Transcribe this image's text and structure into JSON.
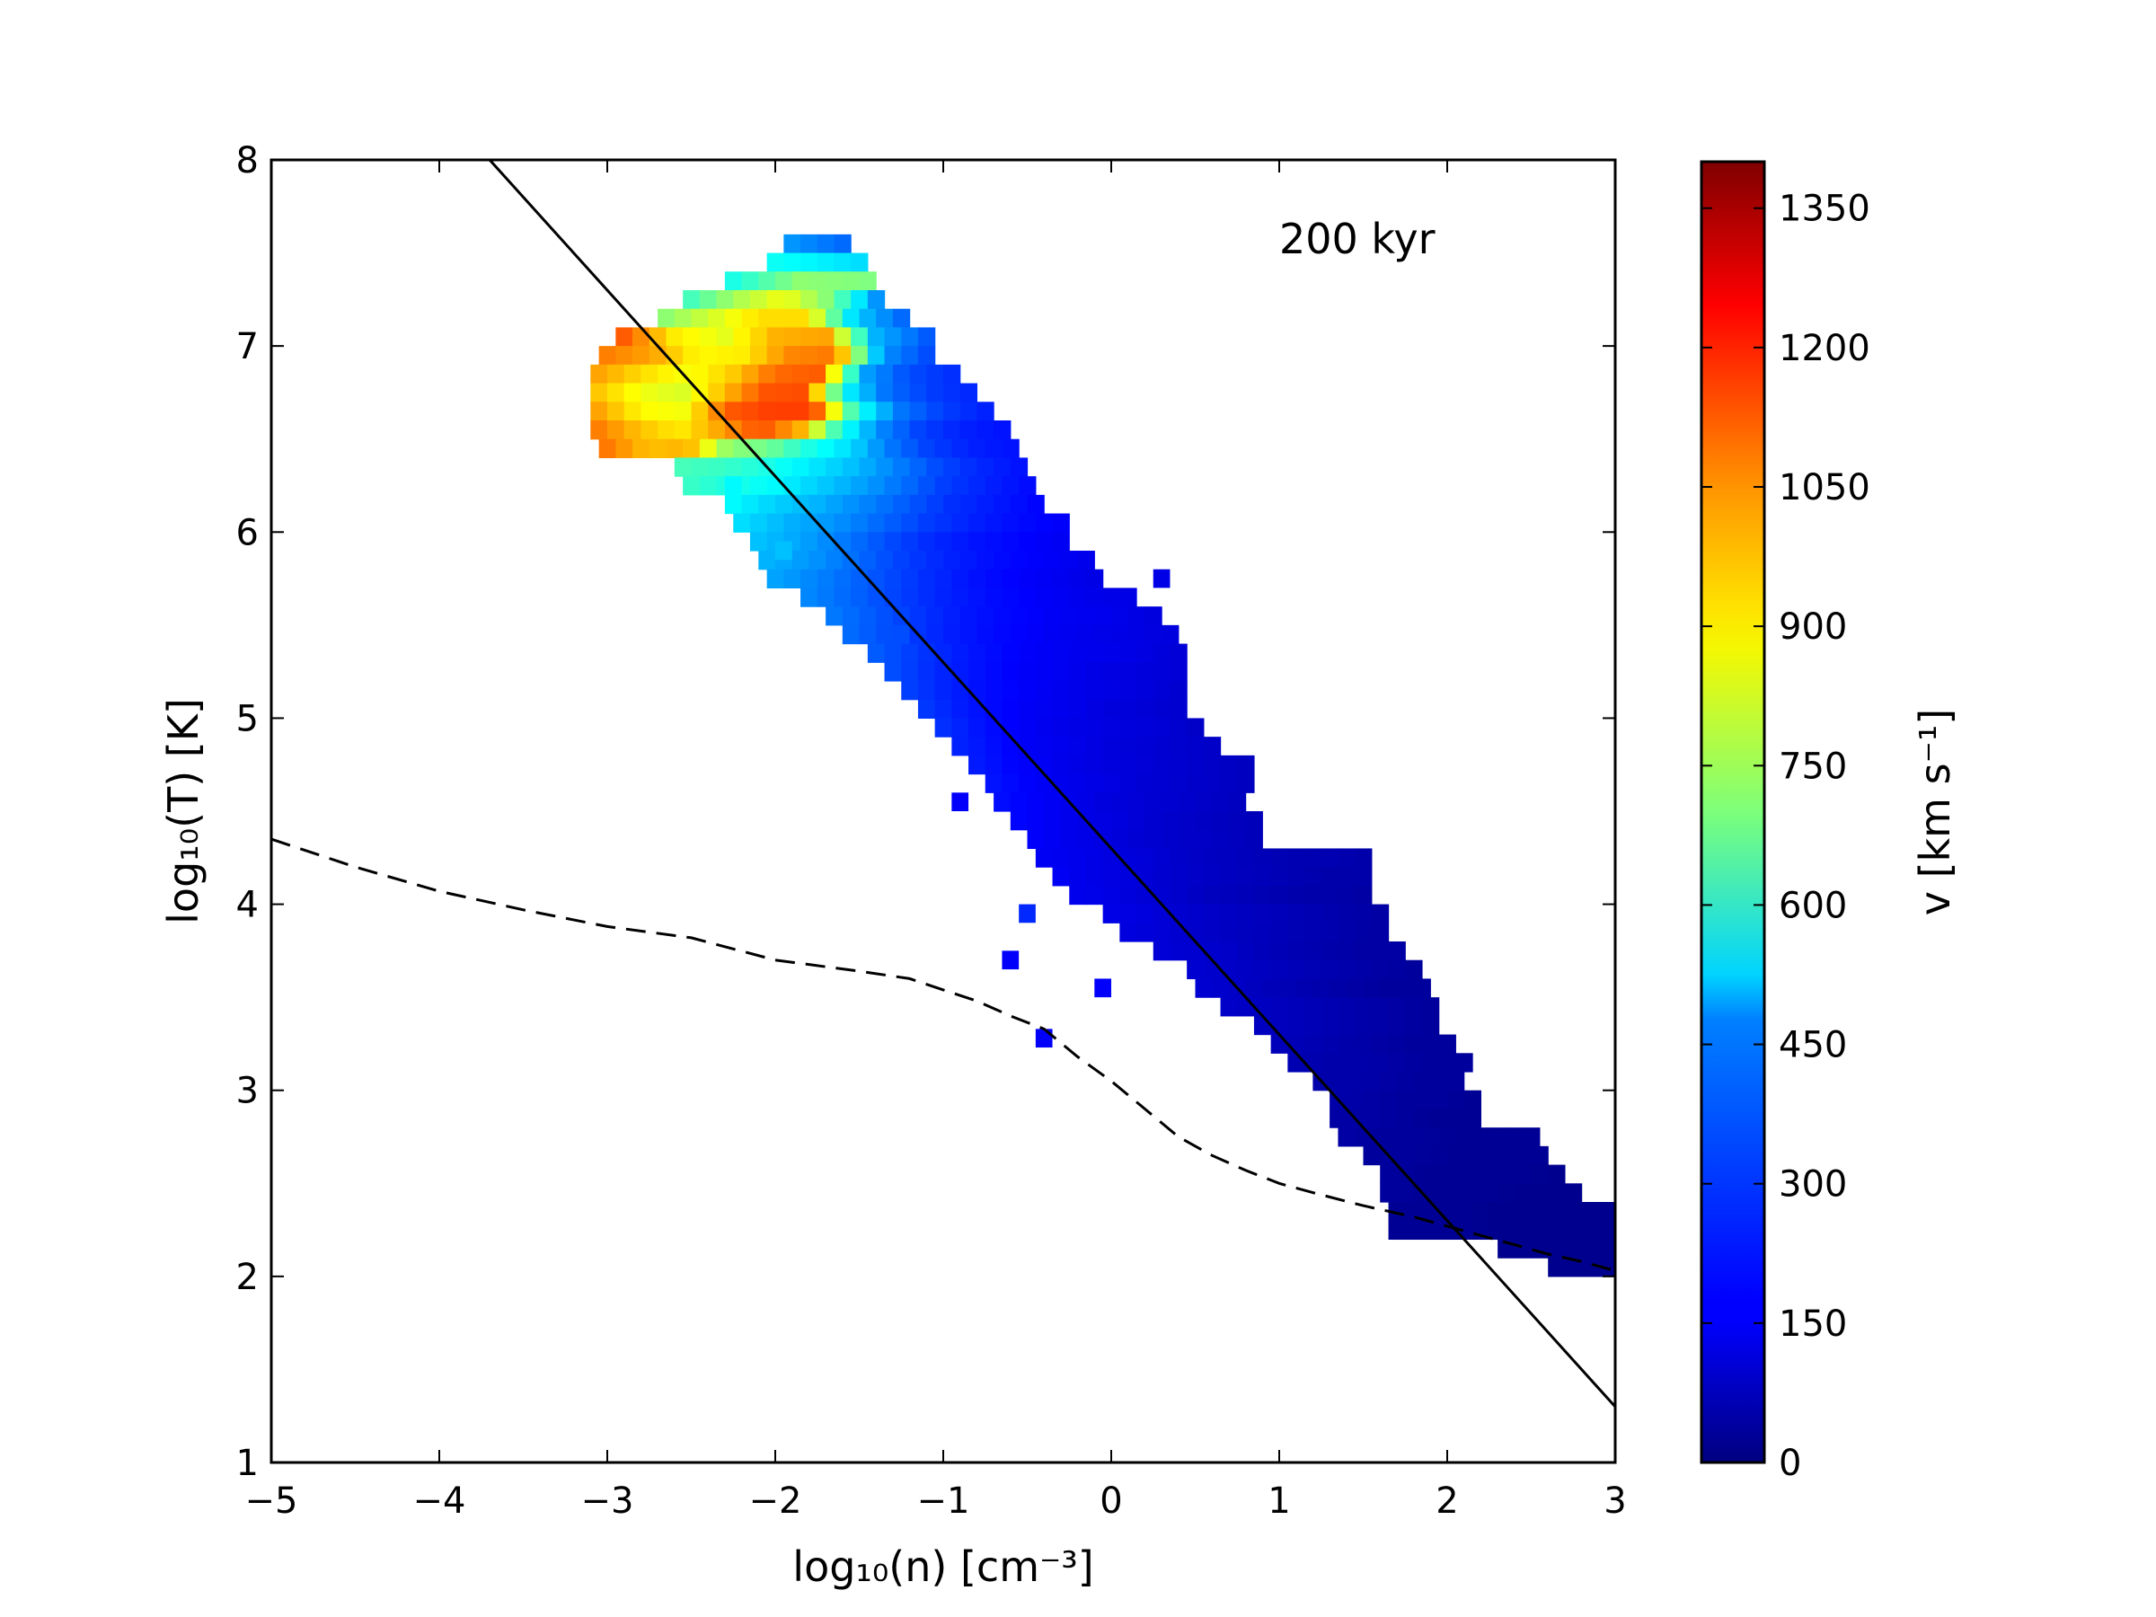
{
  "chart_data": {
    "type": "heatmap",
    "xlabel": "log₁₀(n) [cm⁻³]",
    "ylabel": "log₁₀(T) [K]",
    "colorbar_label": "v [km s⁻¹]",
    "annotation": "200 kyr",
    "xlim": [
      -5,
      3
    ],
    "ylim": [
      1,
      8
    ],
    "clim": [
      0,
      1400
    ],
    "colormap": "jet",
    "x_ticks": [
      -5,
      -4,
      -3,
      -2,
      -1,
      0,
      1,
      2,
      3
    ],
    "x_tick_labels": [
      "−5",
      "−4",
      "−3",
      "−2",
      "−1",
      "0",
      "1",
      "2",
      "3"
    ],
    "y_ticks": [
      1,
      2,
      3,
      4,
      5,
      6,
      7,
      8
    ],
    "y_tick_labels": [
      "1",
      "2",
      "3",
      "4",
      "5",
      "6",
      "7",
      "8"
    ],
    "colorbar_ticks": [
      0,
      150,
      300,
      450,
      600,
      750,
      900,
      1050,
      1200,
      1350
    ],
    "colorbar_tick_labels": [
      "0",
      "150",
      "300",
      "450",
      "600",
      "750",
      "900",
      "1050",
      "1200",
      "1350"
    ],
    "series": [
      {
        "kind": "solid-line",
        "color": "#000000",
        "x": [
          -3.7,
          3.0
        ],
        "y": [
          8.0,
          1.3
        ]
      },
      {
        "kind": "dashed-line",
        "color": "#000000",
        "x": [
          -5.0,
          -4.5,
          -4.0,
          -3.5,
          -3.0,
          -2.5,
          -2.0,
          -1.5,
          -1.2,
          -1.0,
          -0.8,
          -0.6,
          -0.4,
          -0.2,
          0.0,
          0.2,
          0.4,
          0.6,
          0.8,
          1.0,
          1.2,
          1.5,
          1.8,
          2.0,
          2.2,
          2.4,
          2.6,
          2.8,
          3.0
        ],
        "y": [
          4.35,
          4.2,
          4.07,
          3.97,
          3.88,
          3.82,
          3.7,
          3.64,
          3.6,
          3.54,
          3.48,
          3.4,
          3.33,
          3.18,
          3.05,
          2.9,
          2.75,
          2.65,
          2.57,
          2.5,
          2.45,
          2.38,
          2.32,
          2.27,
          2.22,
          2.17,
          2.12,
          2.08,
          2.03
        ]
      }
    ],
    "distribution": {
      "description": "phase-space histogram of velocity; each row gives log10(T), the log10(n) extent, and the velocity along the row",
      "rows": [
        {
          "T": 7.55,
          "n_min": -1.95,
          "n_max": -1.55,
          "v": [
            380,
            320
          ]
        },
        {
          "T": 7.45,
          "n_min": -2.05,
          "n_max": -1.45,
          "v": [
            540,
            480
          ]
        },
        {
          "T": 7.35,
          "n_min": -2.3,
          "n_max": -1.4,
          "v": [
            560,
            720,
            700
          ]
        },
        {
          "T": 7.25,
          "n_min": -2.55,
          "n_max": -1.3,
          "v": [
            620,
            760,
            860,
            700,
            380
          ]
        },
        {
          "T": 7.15,
          "n_min": -2.7,
          "n_max": -1.2,
          "v": [
            720,
            820,
            920,
            920,
            460,
            320
          ]
        },
        {
          "T": 7.05,
          "n_min": -2.95,
          "n_max": -1.1,
          "v": [
            1100,
            900,
            840,
            980,
            1000,
            420,
            300
          ]
        },
        {
          "T": 6.95,
          "n_min": -3.05,
          "n_max": -1.0,
          "v": [
            1050,
            1000,
            880,
            900,
            1040,
            1060,
            380,
            280
          ]
        },
        {
          "T": 6.85,
          "n_min": -3.1,
          "n_max": -0.95,
          "v": [
            1000,
            920,
            860,
            940,
            1080,
            1100,
            400,
            280,
            240
          ]
        },
        {
          "T": 6.75,
          "n_min": -3.1,
          "n_max": -0.85,
          "v": [
            950,
            860,
            820,
            960,
            1110,
            1120,
            520,
            330,
            260,
            230
          ]
        },
        {
          "T": 6.65,
          "n_min": -3.1,
          "n_max": -0.75,
          "v": [
            1000,
            880,
            860,
            1100,
            1140,
            1140,
            560,
            340,
            260,
            220
          ]
        },
        {
          "T": 6.55,
          "n_min": -3.1,
          "n_max": -0.65,
          "v": [
            1050,
            960,
            900,
            1000,
            1120,
            980,
            560,
            360,
            260,
            220,
            200
          ]
        },
        {
          "T": 6.45,
          "n_min": -3.05,
          "n_max": -0.55,
          "v": [
            1060,
            960,
            980,
            720,
            680,
            560,
            480,
            340,
            260,
            220,
            200
          ]
        },
        {
          "T": 6.35,
          "n_min": -2.6,
          "n_max": -0.5,
          "v": [
            620,
            600,
            560,
            500,
            440,
            360,
            280,
            230,
            200
          ]
        },
        {
          "T": 6.25,
          "n_min": -2.55,
          "n_max": -0.45,
          "v": [
            600,
            560,
            520,
            460,
            400,
            330,
            260,
            220,
            190
          ]
        },
        {
          "T": 6.15,
          "n_min": -2.3,
          "n_max": -0.35,
          "v": [
            520,
            460,
            420,
            360,
            300,
            240,
            210,
            180
          ]
        },
        {
          "T": 6.05,
          "n_min": -2.25,
          "n_max": -0.3,
          "v": [
            480,
            420,
            380,
            320,
            260,
            220,
            190,
            170
          ]
        },
        {
          "T": 5.95,
          "n_min": -2.15,
          "n_max": -0.25,
          "v": [
            440,
            400,
            340,
            280,
            230,
            200,
            180,
            160
          ]
        },
        {
          "T": 5.85,
          "n_min": -2.1,
          "n_max": -0.15,
          "v": [
            420,
            380,
            320,
            260,
            220,
            190,
            170,
            150
          ]
        },
        {
          "T": 5.75,
          "n_min": -2.05,
          "n_max": -0.05,
          "v": [
            400,
            350,
            300,
            250,
            210,
            180,
            160,
            140
          ]
        },
        {
          "T": 5.65,
          "n_min": -1.85,
          "n_max": 0.15,
          "v": [
            360,
            310,
            260,
            220,
            190,
            170,
            150,
            140
          ]
        },
        {
          "T": 5.55,
          "n_min": -1.7,
          "n_max": 0.25,
          "v": [
            340,
            290,
            240,
            200,
            180,
            160,
            150,
            130
          ]
        },
        {
          "T": 5.45,
          "n_min": -1.6,
          "n_max": 0.35,
          "v": [
            320,
            270,
            220,
            190,
            170,
            150,
            140,
            130
          ]
        },
        {
          "T": 5.35,
          "n_min": -1.45,
          "n_max": 0.4,
          "v": [
            300,
            250,
            210,
            180,
            160,
            150,
            140,
            120
          ]
        },
        {
          "T": 5.25,
          "n_min": -1.35,
          "n_max": 0.4,
          "v": [
            280,
            230,
            200,
            170,
            160,
            140,
            130,
            120
          ]
        },
        {
          "T": 5.15,
          "n_min": -1.25,
          "n_max": 0.45,
          "v": [
            260,
            220,
            190,
            170,
            150,
            140,
            130,
            110
          ]
        },
        {
          "T": 5.05,
          "n_min": -1.15,
          "n_max": 0.45,
          "v": [
            250,
            210,
            180,
            160,
            150,
            130,
            120,
            110
          ]
        },
        {
          "T": 4.95,
          "n_min": -1.05,
          "n_max": 0.55,
          "v": [
            240,
            200,
            170,
            150,
            140,
            130,
            120,
            100
          ]
        },
        {
          "T": 4.85,
          "n_min": -0.95,
          "n_max": 0.65,
          "v": [
            220,
            190,
            160,
            150,
            130,
            120,
            110,
            100
          ]
        },
        {
          "T": 4.75,
          "n_min": -0.85,
          "n_max": 0.85,
          "v": [
            210,
            180,
            160,
            140,
            130,
            120,
            110,
            100,
            90
          ]
        },
        {
          "T": 4.65,
          "n_min": -0.75,
          "n_max": 0.85,
          "v": [
            200,
            170,
            150,
            140,
            120,
            110,
            100,
            90
          ]
        },
        {
          "T": 4.55,
          "n_min": -0.7,
          "n_max": 0.8,
          "v": [
            190,
            170,
            150,
            130,
            120,
            110,
            100,
            90
          ]
        },
        {
          "T": 4.45,
          "n_min": -0.6,
          "n_max": 0.95,
          "v": [
            180,
            160,
            140,
            130,
            110,
            100,
            90,
            80
          ]
        },
        {
          "T": 4.35,
          "n_min": -0.5,
          "n_max": 0.95,
          "v": [
            170,
            150,
            140,
            120,
            110,
            100,
            90,
            80
          ]
        },
        {
          "T": 4.25,
          "n_min": -0.45,
          "n_max": 1.55,
          "v": [
            160,
            150,
            130,
            120,
            100,
            90,
            80,
            70,
            70,
            60
          ]
        },
        {
          "T": 4.15,
          "n_min": -0.35,
          "n_max": 1.55,
          "v": [
            160,
            140,
            130,
            110,
            100,
            90,
            80,
            70,
            60,
            60
          ]
        },
        {
          "T": 4.05,
          "n_min": -0.25,
          "n_max": 1.55,
          "v": [
            150,
            140,
            120,
            110,
            90,
            80,
            70,
            60,
            60,
            50
          ]
        },
        {
          "T": 3.95,
          "n_min": -0.05,
          "n_max": 1.6,
          "v": [
            140,
            130,
            110,
            100,
            90,
            80,
            70,
            60,
            50
          ]
        },
        {
          "T": 3.85,
          "n_min": 0.05,
          "n_max": 1.7,
          "v": [
            130,
            120,
            100,
            90,
            80,
            70,
            60,
            50
          ]
        },
        {
          "T": 3.75,
          "n_min": 0.25,
          "n_max": 1.75,
          "v": [
            120,
            110,
            100,
            80,
            70,
            60,
            50,
            50
          ]
        },
        {
          "T": 3.65,
          "n_min": 0.45,
          "n_max": 1.85,
          "v": [
            110,
            100,
            90,
            80,
            70,
            60,
            50,
            40
          ]
        },
        {
          "T": 3.55,
          "n_min": 0.5,
          "n_max": 1.95,
          "v": [
            110,
            100,
            80,
            70,
            60,
            50,
            40,
            40
          ]
        },
        {
          "T": 3.45,
          "n_min": 0.65,
          "n_max": 1.95,
          "v": [
            100,
            90,
            80,
            70,
            60,
            50,
            40
          ]
        },
        {
          "T": 3.35,
          "n_min": 0.85,
          "n_max": 2.0,
          "v": [
            90,
            80,
            70,
            60,
            50,
            40
          ]
        },
        {
          "T": 3.25,
          "n_min": 0.95,
          "n_max": 2.0,
          "v": [
            80,
            70,
            60,
            50,
            40,
            40
          ]
        },
        {
          "T": 3.15,
          "n_min": 1.05,
          "n_max": 2.1,
          "v": [
            70,
            60,
            60,
            50,
            40,
            40
          ]
        },
        {
          "T": 3.05,
          "n_min": 1.2,
          "n_max": 2.15,
          "v": [
            60,
            60,
            50,
            40,
            40
          ]
        },
        {
          "T": 2.95,
          "n_min": 1.3,
          "n_max": 2.25,
          "v": [
            60,
            50,
            40,
            40,
            30
          ]
        },
        {
          "T": 2.85,
          "n_min": 1.3,
          "n_max": 2.25,
          "v": [
            50,
            50,
            40,
            30,
            30
          ]
        },
        {
          "T": 2.75,
          "n_min": 1.35,
          "n_max": 2.55,
          "v": [
            50,
            40,
            40,
            30,
            30,
            30
          ]
        },
        {
          "T": 2.65,
          "n_min": 1.5,
          "n_max": 2.6,
          "v": [
            40,
            40,
            30,
            30,
            30
          ]
        },
        {
          "T": 2.55,
          "n_min": 1.6,
          "n_max": 2.75,
          "v": [
            40,
            30,
            30,
            30,
            20
          ]
        },
        {
          "T": 2.45,
          "n_min": 1.6,
          "n_max": 2.8,
          "v": [
            40,
            30,
            30,
            20,
            20
          ]
        },
        {
          "T": 2.35,
          "n_min": 1.65,
          "n_max": 3.0,
          "v": [
            30,
            30,
            20,
            20,
            20
          ]
        },
        {
          "T": 2.25,
          "n_min": 1.65,
          "n_max": 3.0,
          "v": [
            30,
            30,
            20,
            20,
            20
          ]
        },
        {
          "T": 2.15,
          "n_min": 2.3,
          "n_max": 3.0,
          "v": [
            20,
            20,
            20
          ]
        },
        {
          "T": 2.05,
          "n_min": 2.6,
          "n_max": 3.0,
          "v": [
            20,
            20
          ]
        }
      ],
      "isolated_cells": [
        {
          "n": -0.95,
          "T": 4.55,
          "v": 170
        },
        {
          "n": -0.55,
          "T": 3.95,
          "v": 230
        },
        {
          "n": -0.65,
          "T": 3.7,
          "v": 170
        },
        {
          "n": -0.1,
          "T": 3.55,
          "v": 170
        },
        {
          "n": -0.45,
          "T": 3.28,
          "v": 170
        },
        {
          "n": -1.3,
          "T": 5.45,
          "v": 280
        },
        {
          "n": -2.0,
          "T": 5.9,
          "v": 440
        },
        {
          "n": -2.3,
          "T": 6.25,
          "v": 520
        },
        {
          "n": 0.25,
          "T": 5.75,
          "v": 140
        }
      ]
    }
  }
}
